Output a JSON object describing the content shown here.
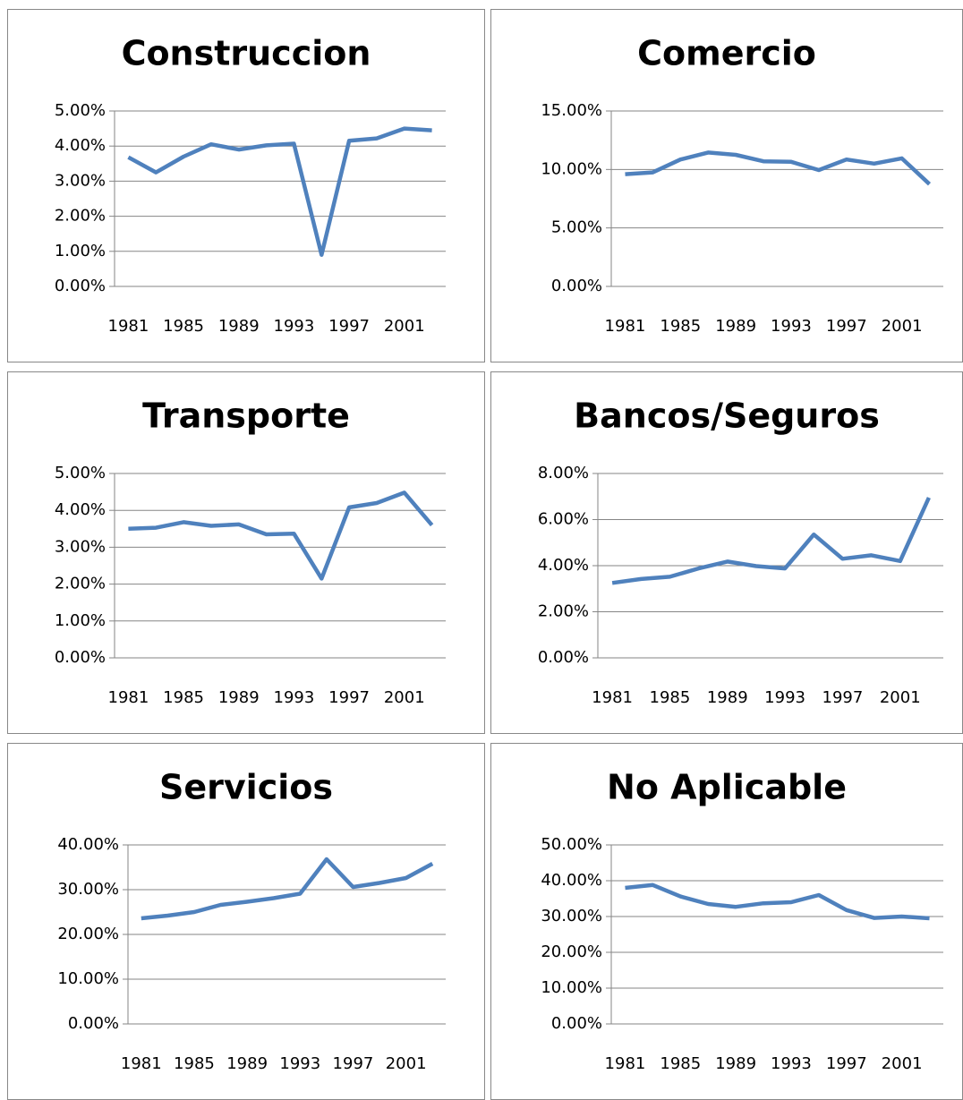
{
  "chart_data": [
    {
      "type": "line",
      "title": "Construccion",
      "categories": [
        "1981",
        null,
        "1985",
        null,
        "1989",
        null,
        "1993",
        null,
        "1997",
        null,
        "2001",
        null
      ],
      "values": [
        3.68,
        3.25,
        3.7,
        4.05,
        3.9,
        4.02,
        4.07,
        0.9,
        4.15,
        4.22,
        4.5,
        4.45
      ],
      "color": "#4f81bd",
      "ylim": [
        0,
        5
      ],
      "yticks": [
        {
          "value": 0,
          "label": "0.00%"
        },
        {
          "value": 1,
          "label": "1.00%"
        },
        {
          "value": 2,
          "label": "2.00%"
        },
        {
          "value": 3,
          "label": "3.00%"
        },
        {
          "value": 4,
          "label": "4.00%"
        },
        {
          "value": 5,
          "label": "5.00%"
        }
      ],
      "grid": true
    },
    {
      "type": "line",
      "title": "Comercio",
      "categories": [
        "1981",
        null,
        "1985",
        null,
        "1989",
        null,
        "1993",
        null,
        "1997",
        null,
        "2001",
        null
      ],
      "values": [
        9.6,
        9.75,
        10.85,
        11.45,
        11.25,
        10.7,
        10.65,
        9.95,
        10.85,
        10.5,
        10.95,
        8.75
      ],
      "color": "#4f81bd",
      "ylim": [
        0,
        15
      ],
      "yticks": [
        {
          "value": 0,
          "label": "0.00%"
        },
        {
          "value": 5,
          "label": "5.00%"
        },
        {
          "value": 10,
          "label": "10.00%"
        },
        {
          "value": 15,
          "label": "15.00%"
        }
      ],
      "grid": true
    },
    {
      "type": "line",
      "title": "Transporte",
      "categories": [
        "1981",
        null,
        "1985",
        null,
        "1989",
        null,
        "1993",
        null,
        "1997",
        null,
        "2001",
        null
      ],
      "values": [
        3.5,
        3.53,
        3.68,
        3.58,
        3.62,
        3.35,
        3.37,
        2.15,
        4.08,
        4.2,
        4.48,
        3.6
      ],
      "color": "#4f81bd",
      "ylim": [
        0,
        5
      ],
      "yticks": [
        {
          "value": 0,
          "label": "0.00%"
        },
        {
          "value": 1,
          "label": "1.00%"
        },
        {
          "value": 2,
          "label": "2.00%"
        },
        {
          "value": 3,
          "label": "3.00%"
        },
        {
          "value": 4,
          "label": "4.00%"
        },
        {
          "value": 5,
          "label": "5.00%"
        }
      ],
      "grid": true
    },
    {
      "type": "line",
      "title": "Bancos/Seguros",
      "categories": [
        "1981",
        null,
        "1985",
        null,
        "1989",
        null,
        "1993",
        null,
        "1997",
        null,
        "2001",
        null
      ],
      "values": [
        3.25,
        3.42,
        3.52,
        3.88,
        4.18,
        3.98,
        3.88,
        5.35,
        4.3,
        4.45,
        4.2,
        6.95
      ],
      "color": "#4f81bd",
      "ylim": [
        0,
        8
      ],
      "yticks": [
        {
          "value": 0,
          "label": "0.00%"
        },
        {
          "value": 2,
          "label": "2.00%"
        },
        {
          "value": 4,
          "label": "4.00%"
        },
        {
          "value": 6,
          "label": "6.00%"
        },
        {
          "value": 8,
          "label": "8.00%"
        }
      ],
      "grid": true
    },
    {
      "type": "line",
      "title": "Servicios",
      "categories": [
        "1981",
        null,
        "1985",
        null,
        "1989",
        null,
        "1993",
        null,
        "1997",
        null,
        "2001",
        null
      ],
      "values": [
        23.6,
        24.2,
        25,
        26.6,
        27.3,
        28.1,
        29.1,
        36.8,
        30.6,
        31.5,
        32.6,
        35.8
      ],
      "color": "#4f81bd",
      "ylim": [
        0,
        40
      ],
      "yticks": [
        {
          "value": 0,
          "label": "0.00%"
        },
        {
          "value": 10,
          "label": "10.00%"
        },
        {
          "value": 20,
          "label": "20.00%"
        },
        {
          "value": 30,
          "label": "30.00%"
        },
        {
          "value": 40,
          "label": "40.00%"
        }
      ],
      "grid": true
    },
    {
      "type": "line",
      "title": "No Aplicable",
      "categories": [
        "1981",
        null,
        "1985",
        null,
        "1989",
        null,
        "1993",
        null,
        "1997",
        null,
        "2001",
        null
      ],
      "values": [
        38,
        38.8,
        35.6,
        33.5,
        32.7,
        33.7,
        34,
        36,
        31.8,
        29.6,
        30,
        29.5
      ],
      "color": "#4f81bd",
      "ylim": [
        0,
        50
      ],
      "yticks": [
        {
          "value": 0,
          "label": "0.00%"
        },
        {
          "value": 10,
          "label": "10.00%"
        },
        {
          "value": 20,
          "label": "20.00%"
        },
        {
          "value": 30,
          "label": "30.00%"
        },
        {
          "value": 40,
          "label": "40.00%"
        },
        {
          "value": 50,
          "label": "50.00%"
        }
      ],
      "grid": true
    }
  ]
}
